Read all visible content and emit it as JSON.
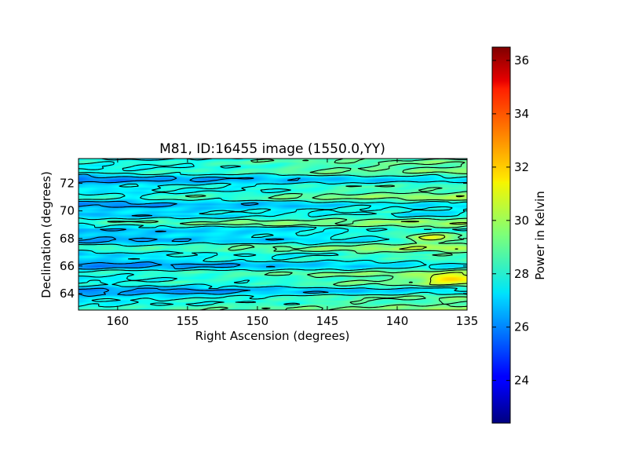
{
  "chart_data": {
    "type": "heatmap",
    "title": "M81, ID:16455 image (1550.0,YY)",
    "xlabel": "Right Ascension (degrees)",
    "ylabel": "Declination (degrees)",
    "xlim": [
      162.8,
      135.0
    ],
    "ylim": [
      62.8,
      73.8
    ],
    "x_ticks": [
      160,
      155,
      150,
      145,
      140,
      135
    ],
    "y_ticks": [
      64,
      66,
      68,
      70,
      72
    ],
    "colorbar": {
      "label": "Power in Kelvin",
      "range": [
        22.4,
        36.5
      ],
      "ticks": [
        24,
        26,
        28,
        30,
        32,
        34,
        36
      ],
      "colormap": "jet"
    },
    "field_base_kelvin": 27.2,
    "field_gradient_kelvin_per_degree_ra": 0.09,
    "field_range_kelvin": [
      25.8,
      31.5
    ],
    "contours": "on",
    "notable_features": [
      {
        "ra": 137.6,
        "dec": 69.9,
        "kelvin": 25.9
      },
      {
        "ra": 159.0,
        "dec": 71.1,
        "kelvin": 26.0
      },
      {
        "ra": 151.5,
        "dec": 71.0,
        "kelvin": 26.3
      },
      {
        "ra": 136.0,
        "dec": 65.0,
        "kelvin": 31.5
      },
      {
        "ra": 137.5,
        "dec": 68.0,
        "kelvin": 31.2
      }
    ]
  },
  "colors": {
    "contour": "#000000",
    "axes": "#000000"
  }
}
